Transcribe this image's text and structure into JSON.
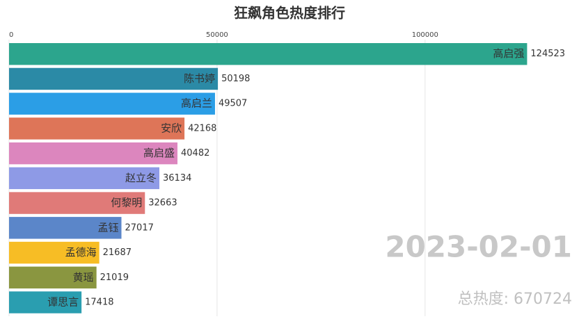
{
  "chart_data": {
    "type": "bar",
    "orientation": "horizontal",
    "title": "狂飙角色热度排行",
    "categories": [
      "高启强",
      "陈书婷",
      "高启兰",
      "安欣",
      "高启盛",
      "赵立冬",
      "何黎明",
      "孟钰",
      "孟德海",
      "黄瑶",
      "谭思言"
    ],
    "values": [
      124523,
      50198,
      49507,
      42168,
      40482,
      36134,
      32663,
      27017,
      21687,
      21019,
      17418
    ],
    "colors": [
      "#2ca58d",
      "#2b8aa6",
      "#2b9ee6",
      "#de7558",
      "#dc86be",
      "#8e9ae6",
      "#e07a78",
      "#5b86c9",
      "#f7bd25",
      "#8a9640",
      "#2a9eb0"
    ],
    "xlim": [
      0,
      137000
    ],
    "xticks": [
      0,
      50000,
      100000
    ],
    "grid": true,
    "date": "2023-02-01",
    "total": "总热度: 670724"
  }
}
